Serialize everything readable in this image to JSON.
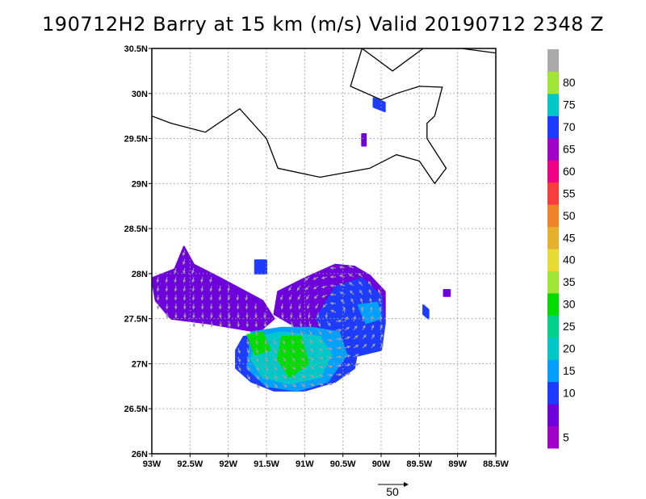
{
  "title": "190712H2  Barry at 15 km (m/s) Valid 20190712  2348  Z",
  "map": {
    "lon_range": [
      -93,
      -88.5
    ],
    "lat_range": [
      26,
      30.5
    ],
    "x_ticks": [
      {
        "lon": -93,
        "label": "93W"
      },
      {
        "lon": -92.5,
        "label": "92.5W"
      },
      {
        "lon": -92,
        "label": "92W"
      },
      {
        "lon": -91.5,
        "label": "91.5W"
      },
      {
        "lon": -91,
        "label": "91W"
      },
      {
        "lon": -90.5,
        "label": "90.5W"
      },
      {
        "lon": -90,
        "label": "90W"
      },
      {
        "lon": -89.5,
        "label": "89.5W"
      },
      {
        "lon": -89,
        "label": "89W"
      },
      {
        "lon": -88.5,
        "label": "88.5W"
      }
    ],
    "y_ticks": [
      {
        "lat": 30.5,
        "label": "30.5N"
      },
      {
        "lat": 30,
        "label": "30N"
      },
      {
        "lat": 29.5,
        "label": "29.5N"
      },
      {
        "lat": 29,
        "label": "29N"
      },
      {
        "lat": 28.5,
        "label": "28.5N"
      },
      {
        "lat": 28,
        "label": "28N"
      },
      {
        "lat": 27.5,
        "label": "27.5N"
      },
      {
        "lat": 27,
        "label": "27N"
      },
      {
        "lat": 26.5,
        "label": "26.5N"
      },
      {
        "lat": 26,
        "label": "26N"
      }
    ],
    "grid": true,
    "coastline": [
      [
        -93.0,
        29.75
      ],
      [
        -92.75,
        29.67
      ],
      [
        -92.3,
        29.57
      ],
      [
        -91.85,
        29.83
      ],
      [
        -91.5,
        29.5
      ],
      [
        -91.35,
        29.17
      ],
      [
        -90.8,
        29.07
      ],
      [
        -90.15,
        29.17
      ],
      [
        -89.8,
        29.32
      ],
      [
        -89.5,
        29.25
      ],
      [
        -89.3,
        29.0
      ],
      [
        -89.15,
        29.17
      ],
      [
        -89.4,
        29.5
      ],
      [
        -89.4,
        29.67
      ],
      [
        -89.3,
        29.75
      ],
      [
        -89.2,
        30.07
      ],
      [
        -89.5,
        30.08
      ],
      [
        -89.8,
        30.0
      ],
      [
        -90.0,
        29.93
      ],
      [
        -90.4,
        30.08
      ],
      [
        -90.25,
        30.5
      ],
      [
        -89.85,
        30.25
      ],
      [
        -89.45,
        30.5
      ],
      [
        -88.95,
        30.5
      ],
      [
        -88.5,
        30.45
      ]
    ],
    "wind_regions": [
      {
        "polygon": [
          [
            -93.0,
            27.95
          ],
          [
            -92.7,
            28.05
          ],
          [
            -92.58,
            28.3
          ],
          [
            -92.45,
            28.1
          ],
          [
            -92.1,
            27.95
          ],
          [
            -91.55,
            27.7
          ],
          [
            -91.4,
            27.5
          ],
          [
            -91.6,
            27.35
          ],
          [
            -92.3,
            27.45
          ],
          [
            -92.75,
            27.5
          ],
          [
            -92.95,
            27.7
          ]
        ],
        "speed": 6
      },
      {
        "polygon": [
          [
            -91.35,
            27.8
          ],
          [
            -91.0,
            27.95
          ],
          [
            -90.6,
            28.1
          ],
          [
            -90.35,
            28.08
          ],
          [
            -90.15,
            27.98
          ],
          [
            -89.95,
            27.8
          ],
          [
            -89.95,
            27.45
          ],
          [
            -90.15,
            27.35
          ],
          [
            -90.6,
            27.3
          ],
          [
            -91.1,
            27.4
          ],
          [
            -91.4,
            27.55
          ]
        ],
        "speed": 6
      },
      {
        "polygon": [
          [
            -90.6,
            27.85
          ],
          [
            -90.25,
            27.95
          ],
          [
            -90.0,
            27.75
          ],
          [
            -89.95,
            27.45
          ],
          [
            -90.0,
            27.15
          ],
          [
            -90.5,
            27.05
          ],
          [
            -90.85,
            27.5
          ]
        ],
        "speed": 11
      },
      {
        "polygon": [
          [
            -91.8,
            27.3
          ],
          [
            -91.4,
            27.35
          ],
          [
            -91.0,
            27.4
          ],
          [
            -90.5,
            27.4
          ],
          [
            -90.3,
            27.2
          ],
          [
            -90.35,
            26.95
          ],
          [
            -90.6,
            26.8
          ],
          [
            -91.0,
            26.7
          ],
          [
            -91.4,
            26.7
          ],
          [
            -91.7,
            26.8
          ],
          [
            -91.9,
            26.95
          ],
          [
            -91.9,
            27.15
          ]
        ],
        "speed": 12
      },
      {
        "polygon": [
          [
            -91.7,
            27.35
          ],
          [
            -91.3,
            27.4
          ],
          [
            -90.9,
            27.4
          ],
          [
            -90.55,
            27.35
          ],
          [
            -90.45,
            27.1
          ],
          [
            -90.7,
            26.8
          ],
          [
            -91.1,
            26.7
          ],
          [
            -91.5,
            26.75
          ],
          [
            -91.75,
            26.95
          ]
        ],
        "speed": 19
      },
      {
        "polygon": [
          [
            -91.6,
            27.3
          ],
          [
            -91.3,
            27.35
          ],
          [
            -90.8,
            27.3
          ],
          [
            -90.65,
            27.1
          ],
          [
            -90.8,
            26.85
          ],
          [
            -91.2,
            26.78
          ],
          [
            -91.55,
            26.85
          ],
          [
            -91.7,
            27.05
          ]
        ],
        "speed": 22
      },
      {
        "polygon": [
          [
            -91.75,
            27.32
          ],
          [
            -91.55,
            27.35
          ],
          [
            -91.45,
            27.15
          ],
          [
            -91.65,
            27.1
          ]
        ],
        "speed": 30
      },
      {
        "polygon": [
          [
            -91.3,
            27.3
          ],
          [
            -91.05,
            27.3
          ],
          [
            -90.95,
            27.0
          ],
          [
            -91.2,
            26.85
          ],
          [
            -91.35,
            27.05
          ]
        ],
        "speed": 31
      },
      {
        "polygon": [
          [
            -90.3,
            27.65
          ],
          [
            -90.05,
            27.68
          ],
          [
            -90.0,
            27.5
          ],
          [
            -90.2,
            27.45
          ]
        ],
        "speed": 19
      },
      {
        "polygon": [
          [
            -91.65,
            28.15
          ],
          [
            -91.5,
            28.15
          ],
          [
            -91.5,
            28.0
          ],
          [
            -91.65,
            28.0
          ]
        ],
        "speed": 11
      },
      {
        "polygon": [
          [
            -90.1,
            29.95
          ],
          [
            -89.95,
            29.9
          ],
          [
            -89.95,
            29.8
          ],
          [
            -90.1,
            29.85
          ]
        ],
        "speed": 12
      },
      {
        "polygon": [
          [
            -90.25,
            29.55
          ],
          [
            -90.2,
            29.55
          ],
          [
            -90.2,
            29.42
          ],
          [
            -90.25,
            29.42
          ]
        ],
        "speed": 6
      },
      {
        "polygon": [
          [
            -89.45,
            27.65
          ],
          [
            -89.38,
            27.6
          ],
          [
            -89.38,
            27.5
          ],
          [
            -89.45,
            27.55
          ]
        ],
        "speed": 10
      },
      {
        "polygon": [
          [
            -89.18,
            27.82
          ],
          [
            -89.1,
            27.82
          ],
          [
            -89.1,
            27.75
          ],
          [
            -89.18,
            27.75
          ]
        ],
        "speed": 6
      }
    ]
  },
  "colorbar": {
    "segments": [
      {
        "color": "#a000c8",
        "label": "5"
      },
      {
        "color": "#6e00dc",
        "label": ""
      },
      {
        "color": "#1e3cff",
        "label": "10"
      },
      {
        "color": "#00a0ff",
        "label": "15"
      },
      {
        "color": "#00c8c8",
        "label": "20"
      },
      {
        "color": "#00d28c",
        "label": "25"
      },
      {
        "color": "#00dc00",
        "label": "30"
      },
      {
        "color": "#a0e632",
        "label": "35"
      },
      {
        "color": "#e6dc32",
        "label": "40"
      },
      {
        "color": "#e6af2d",
        "label": "45"
      },
      {
        "color": "#f08228",
        "label": "50"
      },
      {
        "color": "#fa3c3c",
        "label": "55"
      },
      {
        "color": "#f00082",
        "label": "60"
      },
      {
        "color": "#a000c8",
        "label": "65"
      },
      {
        "color": "#1e3cff",
        "label": "70"
      },
      {
        "color": "#00c8c8",
        "label": "75"
      },
      {
        "color": "#a0e632",
        "label": "80"
      },
      {
        "color": "#aaaaaa",
        "label": ""
      }
    ]
  },
  "reference_vector": {
    "label": "50"
  }
}
